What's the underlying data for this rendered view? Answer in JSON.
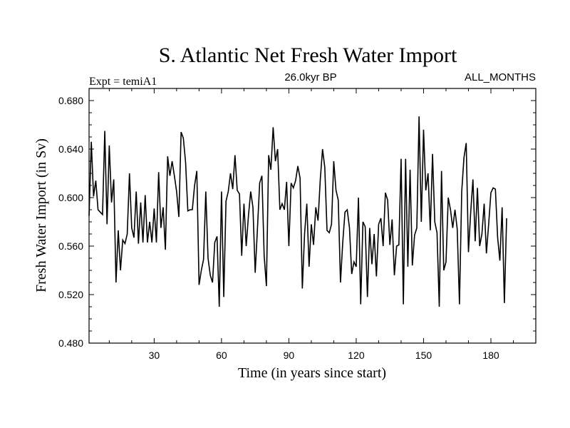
{
  "chart_data": {
    "type": "line",
    "title": "S. Atlantic Net Fresh Water Import",
    "subtitle_left": "Expt = temiA1",
    "subtitle_center": "26.0kyr BP",
    "subtitle_right": "ALL_MONTHS",
    "xlabel": "Time (in years since start)",
    "ylabel": "Fresh Water Import (in Sv)",
    "xlim": [
      1,
      200
    ],
    "ylim": [
      0.48,
      0.69
    ],
    "x_ticks": [
      30,
      60,
      90,
      120,
      150,
      180
    ],
    "x_tick_labels": [
      "30",
      "60",
      "90",
      "120",
      "150",
      "180"
    ],
    "y_ticks": [
      0.48,
      0.52,
      0.56,
      0.6,
      0.64,
      0.68
    ],
    "y_tick_labels": [
      "0.480",
      "0.520",
      "0.560",
      "0.600",
      "0.640",
      "0.680"
    ],
    "series": [
      {
        "name": "Net Fresh Water Import",
        "x_start": 1,
        "x_step": 1,
        "values": [
          0.585,
          0.646,
          0.601,
          0.614,
          0.59,
          0.588,
          0.586,
          0.655,
          0.578,
          0.643,
          0.596,
          0.615,
          0.53,
          0.573,
          0.54,
          0.565,
          0.562,
          0.57,
          0.62,
          0.575,
          0.567,
          0.605,
          0.562,
          0.596,
          0.563,
          0.602,
          0.563,
          0.58,
          0.563,
          0.591,
          0.563,
          0.621,
          0.575,
          0.592,
          0.557,
          0.634,
          0.618,
          0.63,
          0.618,
          0.605,
          0.584,
          0.654,
          0.649,
          0.629,
          0.589,
          0.59,
          0.59,
          0.61,
          0.622,
          0.528,
          0.54,
          0.549,
          0.605,
          0.55,
          0.536,
          0.53,
          0.563,
          0.568,
          0.51,
          0.605,
          0.518,
          0.597,
          0.605,
          0.62,
          0.607,
          0.635,
          0.606,
          0.603,
          0.552,
          0.595,
          0.56,
          0.585,
          0.605,
          0.592,
          0.538,
          0.574,
          0.612,
          0.618,
          0.552,
          0.527,
          0.635,
          0.623,
          0.658,
          0.63,
          0.64,
          0.59,
          0.595,
          0.59,
          0.613,
          0.56,
          0.612,
          0.608,
          0.614,
          0.626,
          0.616,
          0.525,
          0.57,
          0.595,
          0.543,
          0.578,
          0.561,
          0.592,
          0.581,
          0.615,
          0.64,
          0.625,
          0.573,
          0.571,
          0.578,
          0.63,
          0.606,
          0.598,
          0.53,
          0.563,
          0.588,
          0.59,
          0.575,
          0.537,
          0.547,
          0.543,
          0.6,
          0.512,
          0.58,
          0.576,
          0.518,
          0.575,
          0.545,
          0.57,
          0.535,
          0.578,
          0.583,
          0.56,
          0.604,
          0.598,
          0.561,
          0.582,
          0.536,
          0.56,
          0.561,
          0.632,
          0.512,
          0.632,
          0.543,
          0.623,
          0.544,
          0.569,
          0.575,
          0.667,
          0.58,
          0.656,
          0.606,
          0.62,
          0.573,
          0.636,
          0.58,
          0.571,
          0.51,
          0.622,
          0.54,
          0.547,
          0.6,
          0.59,
          0.575,
          0.59,
          0.574,
          0.512,
          0.605,
          0.633,
          0.645,
          0.555,
          0.588,
          0.615,
          0.564,
          0.608,
          0.56,
          0.57,
          0.595,
          0.554,
          0.578,
          0.604,
          0.608,
          0.607,
          0.567,
          0.548,
          0.592,
          0.513,
          0.583
        ]
      }
    ]
  }
}
